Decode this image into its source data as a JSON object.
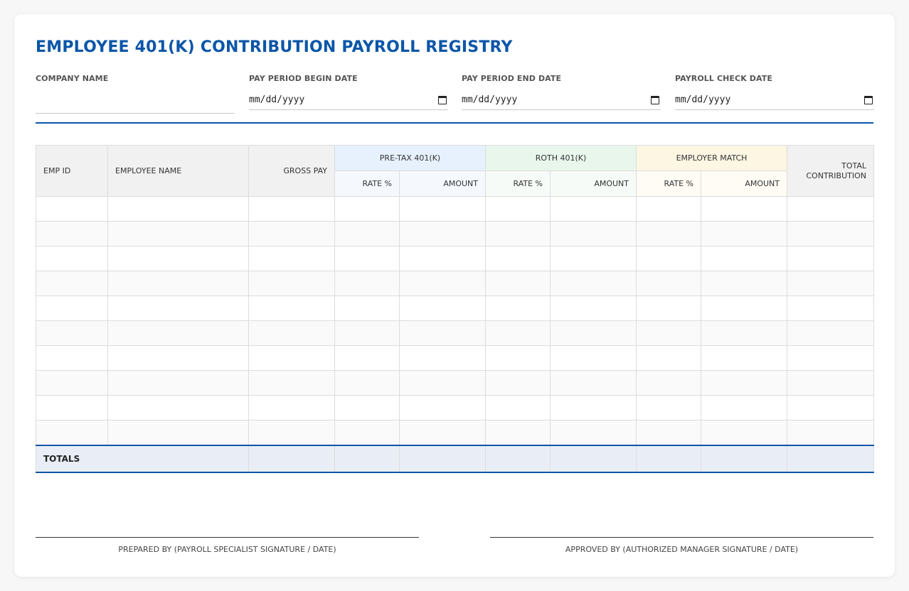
{
  "title": "EMPLOYEE 401(K) CONTRIBUTION PAYROLL REGISTRY",
  "fields": {
    "company_name": {
      "label": "COMPANY NAME",
      "value": ""
    },
    "begin_date": {
      "label": "PAY PERIOD BEGIN DATE",
      "placeholder": "mm/dd/yyyy"
    },
    "end_date": {
      "label": "PAY PERIOD END DATE",
      "placeholder": "mm/dd/yyyy"
    },
    "check_date": {
      "label": "PAYROLL CHECK DATE",
      "placeholder": "mm/dd/yyyy"
    }
  },
  "table": {
    "headers": {
      "emp_id": "EMP ID",
      "employee_name": "EMPLOYEE NAME",
      "gross_pay": "GROSS PAY",
      "pretax_group": "PRE-TAX 401(K)",
      "roth_group": "ROTH 401(K)",
      "match_group": "EMPLOYER MATCH",
      "total_line1": "TOTAL",
      "total_line2": "CONTRIBUTION",
      "rate": "RATE %",
      "amount": "AMOUNT"
    },
    "row_count": 10,
    "totals_label": "TOTALS"
  },
  "signatures": {
    "prepared": "PREPARED BY (PAYROLL SPECIALIST SIGNATURE / DATE)",
    "approved": "APPROVED BY (AUTHORIZED MANAGER SIGNATURE / DATE)"
  },
  "colors": {
    "accent": "#0b56a8",
    "pretax_header": "#e6f1fd",
    "roth_header": "#e8f6ec",
    "match_header": "#fdf6e3",
    "totals_row": "#e9eef6"
  }
}
